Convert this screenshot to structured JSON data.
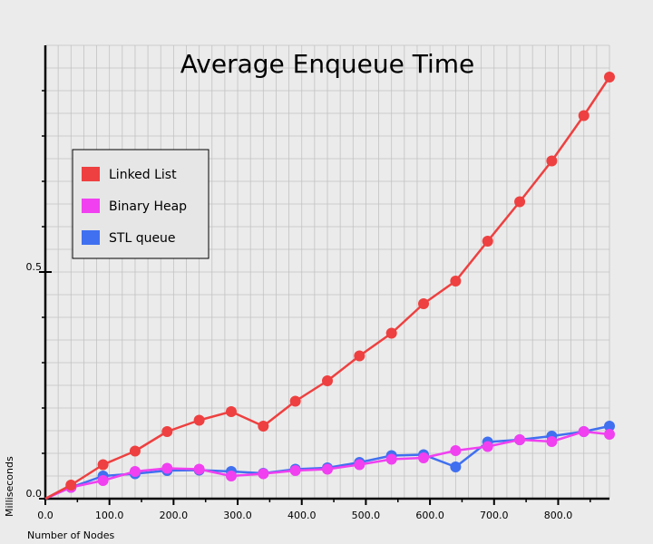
{
  "chart_data": {
    "type": "line",
    "title": "Average Enqueue Time",
    "xlabel": "Number of Nodes",
    "ylabel": "Milliseconds",
    "xlim": [
      0,
      880
    ],
    "ylim": [
      0,
      1.0
    ],
    "x_ticks": [
      0,
      100,
      200,
      300,
      400,
      500,
      600,
      700,
      800
    ],
    "x_tick_labels": [
      "0.0",
      "100.0",
      "200.0",
      "300.0",
      "400.0",
      "500.0",
      "600.0",
      "700.0",
      "800.0"
    ],
    "y_ticks": [
      0,
      0.5
    ],
    "y_tick_labels": [
      "0.0",
      "0.5"
    ],
    "grid": true,
    "legend_position": "upper-left",
    "x": [
      40,
      90,
      140,
      190,
      240,
      290,
      340,
      390,
      440,
      490,
      540,
      590,
      640,
      690,
      740,
      790,
      840,
      880
    ],
    "series": [
      {
        "name": "Linked List",
        "color": "#ee4040",
        "values": [
          0.03,
          0.075,
          0.105,
          0.148,
          0.173,
          0.192,
          0.16,
          0.215,
          0.26,
          0.315,
          0.365,
          0.43,
          0.48,
          0.568,
          0.655,
          0.745,
          0.845,
          0.93
        ]
      },
      {
        "name": "Binary Heap",
        "color": "#f040f0",
        "values": [
          0.025,
          0.04,
          0.06,
          0.067,
          0.065,
          0.05,
          0.055,
          0.062,
          0.065,
          0.075,
          0.087,
          0.09,
          0.106,
          0.115,
          0.13,
          0.126,
          0.148,
          0.142
        ]
      },
      {
        "name": "STL queue",
        "color": "#4070f0",
        "values": [
          0.025,
          0.05,
          0.055,
          0.062,
          0.063,
          0.06,
          0.056,
          0.065,
          0.068,
          0.08,
          0.095,
          0.097,
          0.07,
          0.125,
          0.13,
          0.138,
          0.148,
          0.16
        ]
      }
    ]
  }
}
